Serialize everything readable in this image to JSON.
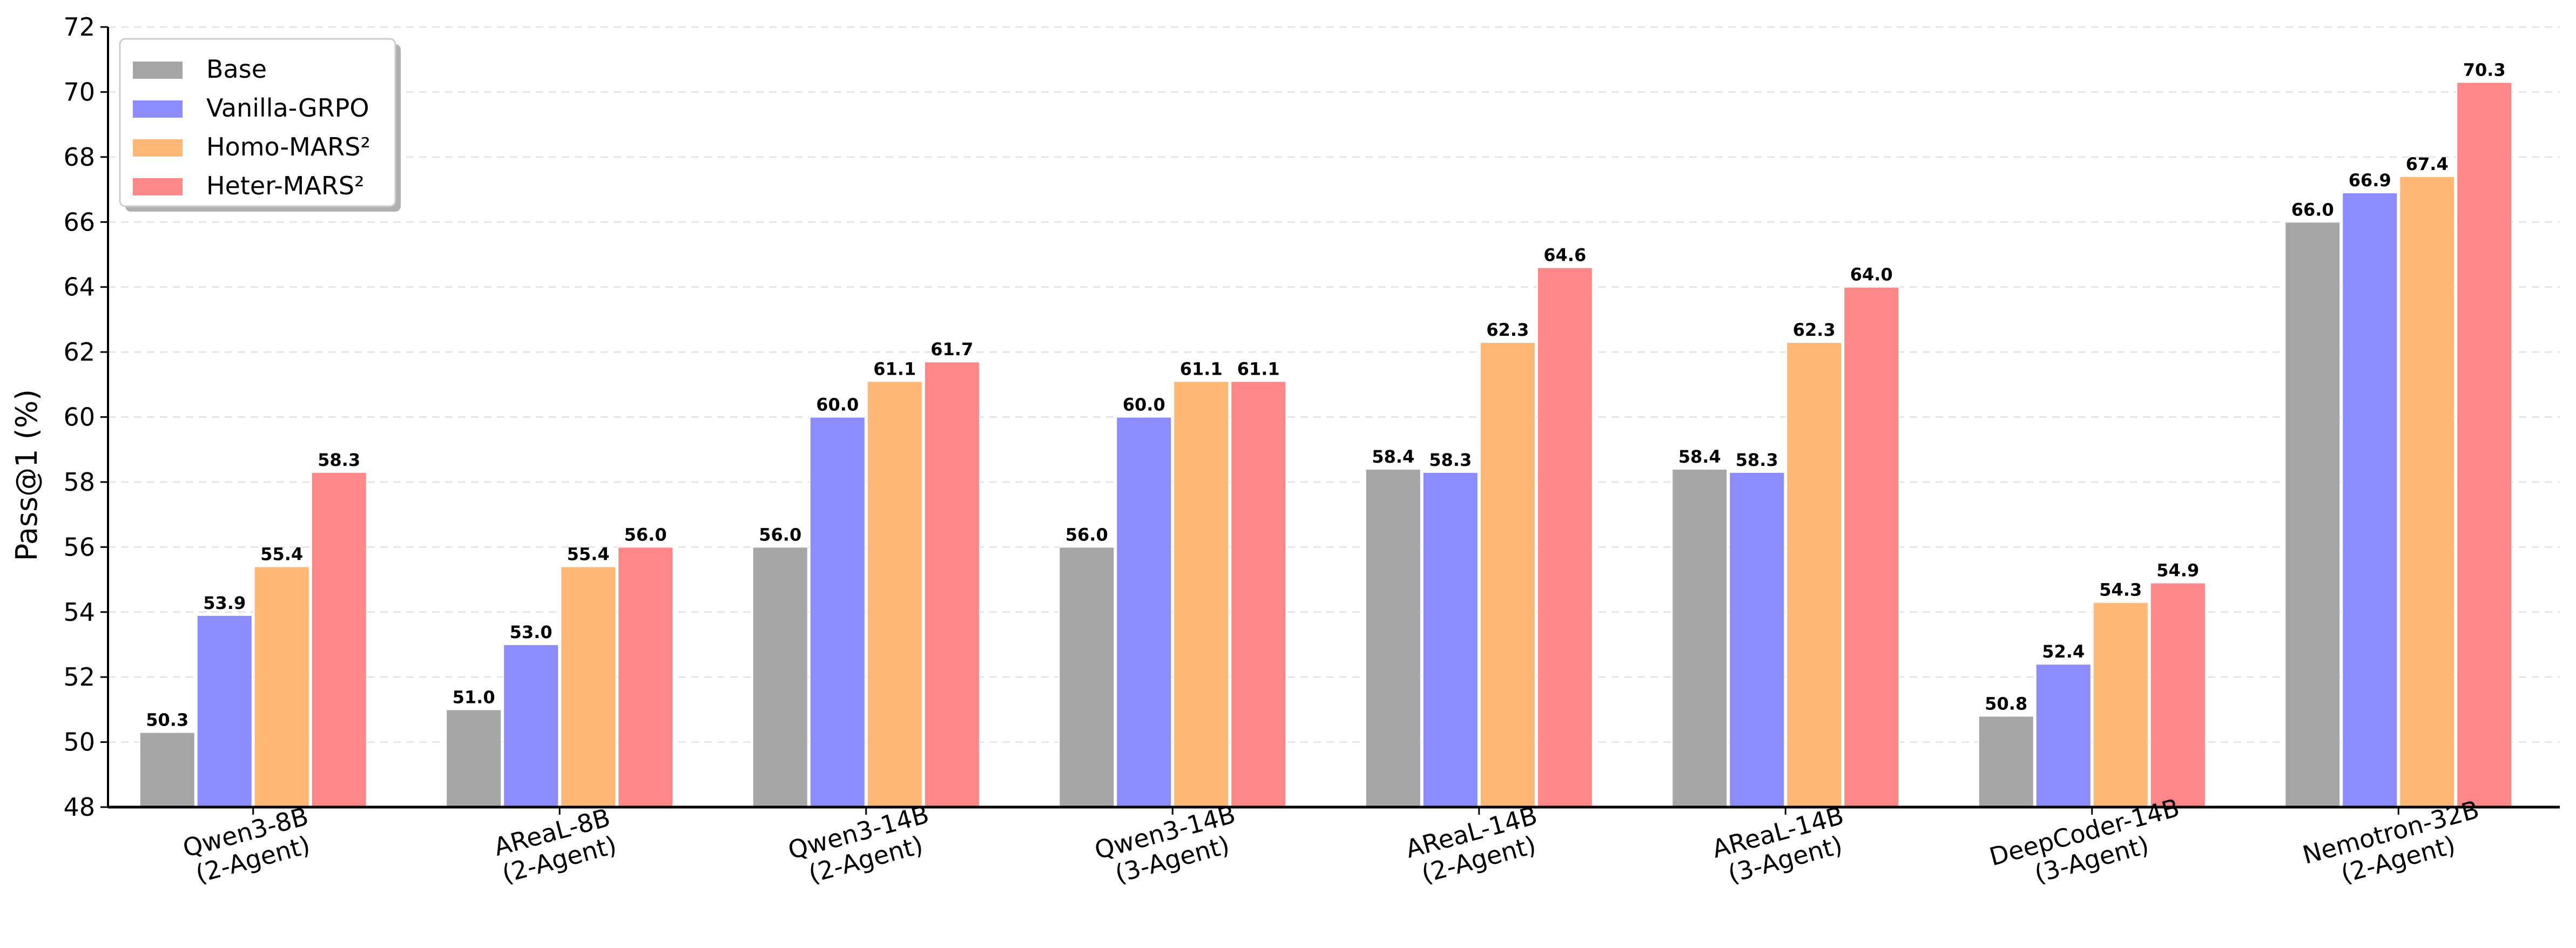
{
  "chart_data": {
    "type": "bar",
    "ylabel": "Pass@1 (%)",
    "ylim": [
      48,
      72
    ],
    "yticks": [
      48,
      50,
      52,
      54,
      56,
      58,
      60,
      62,
      64,
      66,
      68,
      70,
      72
    ],
    "grid": "horizontal-dashed",
    "legend_position": "top-left",
    "categories": [
      [
        "Qwen3-8B",
        "(2-Agent)"
      ],
      [
        "AReaL-8B",
        "(2-Agent)"
      ],
      [
        "Qwen3-14B",
        "(2-Agent)"
      ],
      [
        "Qwen3-14B",
        "(3-Agent)"
      ],
      [
        "AReaL-14B",
        "(2-Agent)"
      ],
      [
        "AReaL-14B",
        "(3-Agent)"
      ],
      [
        "DeepCoder-14B",
        "(3-Agent)"
      ],
      [
        "Nemotron-32B",
        "(2-Agent)"
      ]
    ],
    "series": [
      {
        "name": "Base",
        "color": "#a6a6a6",
        "values": [
          50.3,
          51.0,
          56.0,
          56.0,
          58.4,
          58.4,
          50.8,
          66.0
        ]
      },
      {
        "name": "Vanilla-GRPO",
        "color": "#8c8cff",
        "values": [
          53.9,
          53.0,
          60.0,
          60.0,
          58.3,
          58.3,
          52.4,
          66.9
        ]
      },
      {
        "name": "Homo-MARS²",
        "color": "#ffb775",
        "values": [
          55.4,
          55.4,
          61.1,
          61.1,
          62.3,
          62.3,
          54.3,
          67.4
        ]
      },
      {
        "name": "Heter-MARS²",
        "color": "#ff8787",
        "values": [
          58.3,
          56.0,
          61.7,
          61.1,
          64.6,
          64.0,
          54.9,
          70.3
        ]
      }
    ]
  }
}
